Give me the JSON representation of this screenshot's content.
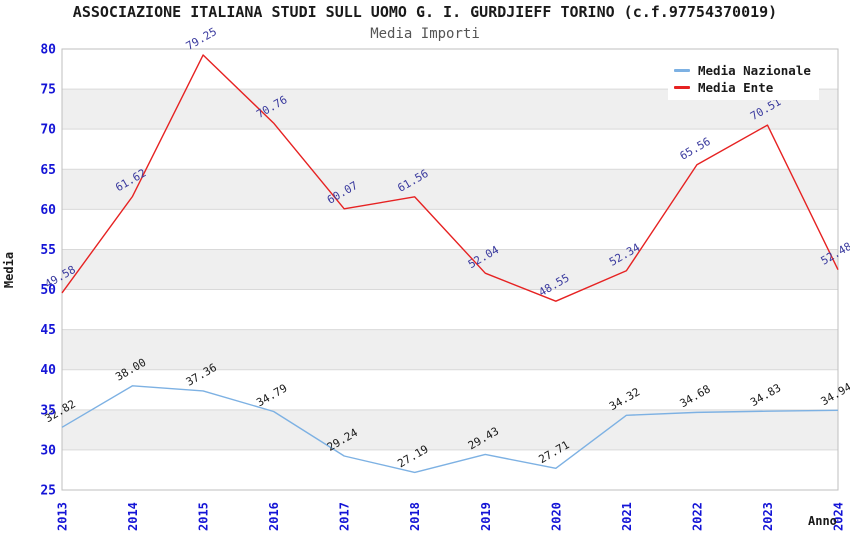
{
  "title": "ASSOCIAZIONE ITALIANA STUDI SULL UOMO G. I. GURDJIEFF TORINO (c.f.97754370019)",
  "subtitle": "Media Importi",
  "legend": {
    "items": [
      {
        "label": "Media Nazionale",
        "color": "#7db1e3"
      },
      {
        "label": "Media Ente",
        "color": "#e62222"
      }
    ]
  },
  "axes": {
    "x_label": "Anno",
    "y_label": "Media",
    "x_ticks": [
      "2013",
      "2014",
      "2015",
      "2016",
      "2017",
      "2018",
      "2019",
      "2020",
      "2021",
      "2022",
      "2023",
      "2024"
    ],
    "y_ticks": [
      25,
      30,
      35,
      40,
      45,
      50,
      55,
      60,
      65,
      70,
      75,
      80
    ],
    "tick_color": "#1414d6"
  },
  "colors": {
    "band_gray": "#efefef",
    "gridline": "#d9d9d9",
    "plot_border": "#bfbfbf",
    "blue_series_label": "#1a1a1a",
    "red_series_label": "#3a3a9e"
  },
  "chart_data": {
    "type": "line",
    "title": "Media Importi",
    "xlabel": "Anno",
    "ylabel": "Media",
    "x": [
      "2013",
      "2014",
      "2015",
      "2016",
      "2017",
      "2018",
      "2019",
      "2020",
      "2021",
      "2022",
      "2023",
      "2024"
    ],
    "series": [
      {
        "name": "Media Nazionale",
        "color": "#7db1e3",
        "label_color": "#1a1a1a",
        "values": [
          32.82,
          38.0,
          37.36,
          34.79,
          29.24,
          27.19,
          29.43,
          27.71,
          34.32,
          34.68,
          34.83,
          34.94
        ]
      },
      {
        "name": "Media Ente",
        "color": "#e62222",
        "label_color": "#3a3a9e",
        "values": [
          49.58,
          61.62,
          79.25,
          70.76,
          60.07,
          61.56,
          52.04,
          48.55,
          52.34,
          65.56,
          70.51,
          52.48
        ]
      }
    ],
    "ylim": [
      25,
      80
    ],
    "grid": true,
    "legend_position": "top-right",
    "gray_band_ranges": [
      [
        70,
        75
      ],
      [
        60,
        65
      ],
      [
        50,
        55
      ],
      [
        40,
        45
      ],
      [
        30,
        35
      ]
    ],
    "point_labels_visible": true,
    "point_label_rotation_deg": -30
  }
}
